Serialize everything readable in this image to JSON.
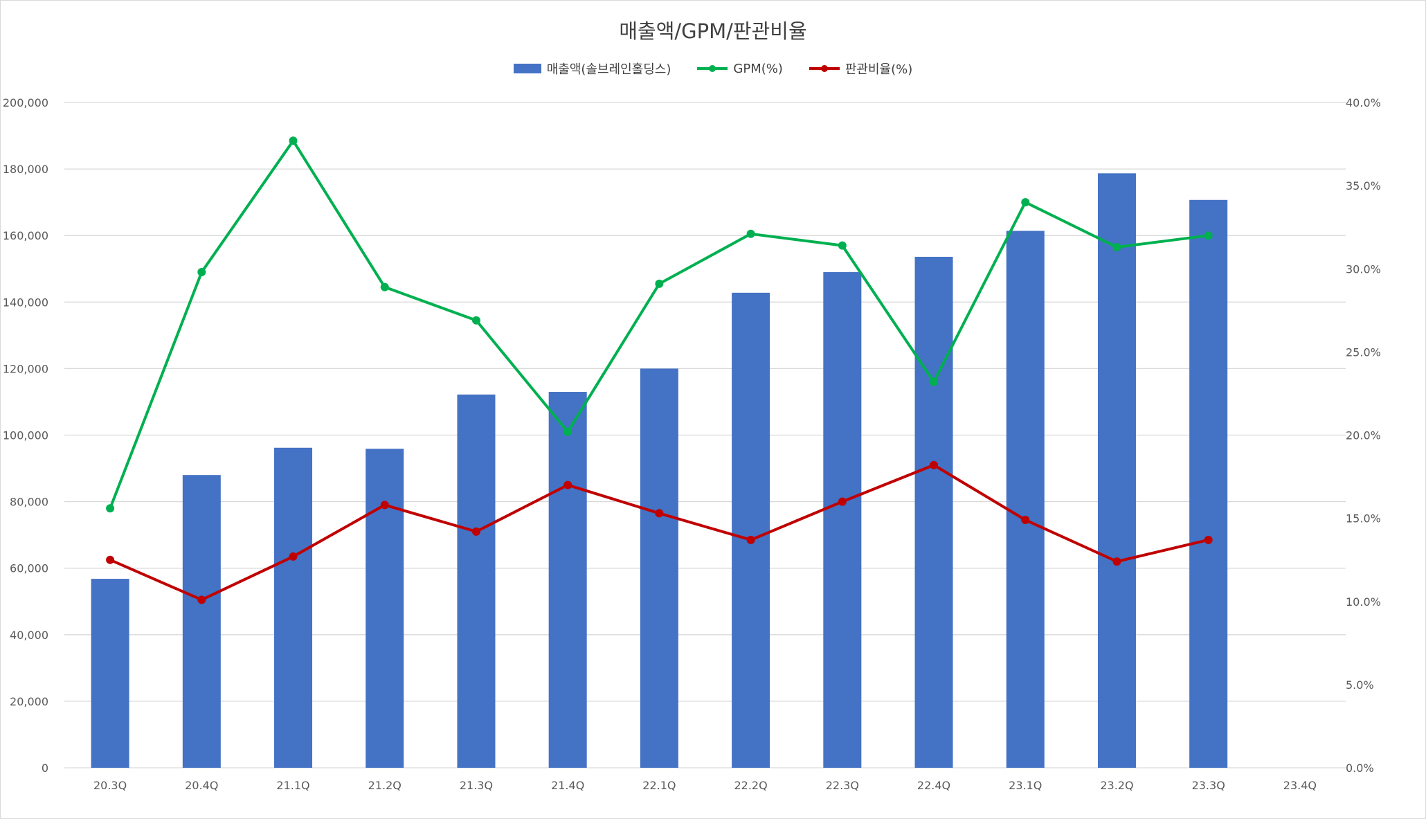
{
  "chart_data": {
    "type": "bar+line",
    "title": "매출액/GPM/판관비율",
    "categories": [
      "20.3Q",
      "20.4Q",
      "21.1Q",
      "21.2Q",
      "21.3Q",
      "21.4Q",
      "22.1Q",
      "22.2Q",
      "22.3Q",
      "22.4Q",
      "23.1Q",
      "23.2Q",
      "23.3Q",
      "23.4Q"
    ],
    "series": [
      {
        "name": "매출액(솔브레인홀딩스)",
        "type": "bar",
        "axis": "left",
        "color": "#4472C4",
        "values": [
          56800,
          88000,
          96200,
          95900,
          112200,
          113000,
          120000,
          142800,
          149000,
          153600,
          161400,
          178700,
          170700,
          null
        ]
      },
      {
        "name": "GPM(%)",
        "type": "line",
        "axis": "right",
        "color": "#00B050",
        "values": [
          15.6,
          29.8,
          37.7,
          28.9,
          26.9,
          20.2,
          29.1,
          32.1,
          31.4,
          23.2,
          34.0,
          31.3,
          32.0,
          null
        ]
      },
      {
        "name": "판관비율(%)",
        "type": "line",
        "axis": "right",
        "color": "#C00000",
        "values": [
          12.5,
          10.1,
          12.7,
          15.8,
          14.2,
          17.0,
          15.3,
          13.7,
          16.0,
          18.2,
          14.9,
          12.4,
          13.7,
          null
        ]
      }
    ],
    "left_axis": {
      "min": 0,
      "max": 200000,
      "step": 20000,
      "tick_labels": [
        "0",
        "20,000",
        "40,000",
        "60,000",
        "80,000",
        "100,000",
        "120,000",
        "140,000",
        "160,000",
        "180,000",
        "200,000"
      ]
    },
    "right_axis": {
      "min": 0,
      "max": 40,
      "step": 5,
      "tick_labels": [
        "0.0%",
        "5.0%",
        "10.0%",
        "15.0%",
        "20.0%",
        "25.0%",
        "30.0%",
        "35.0%",
        "40.0%"
      ]
    },
    "grid": true,
    "legend_position": "top"
  }
}
